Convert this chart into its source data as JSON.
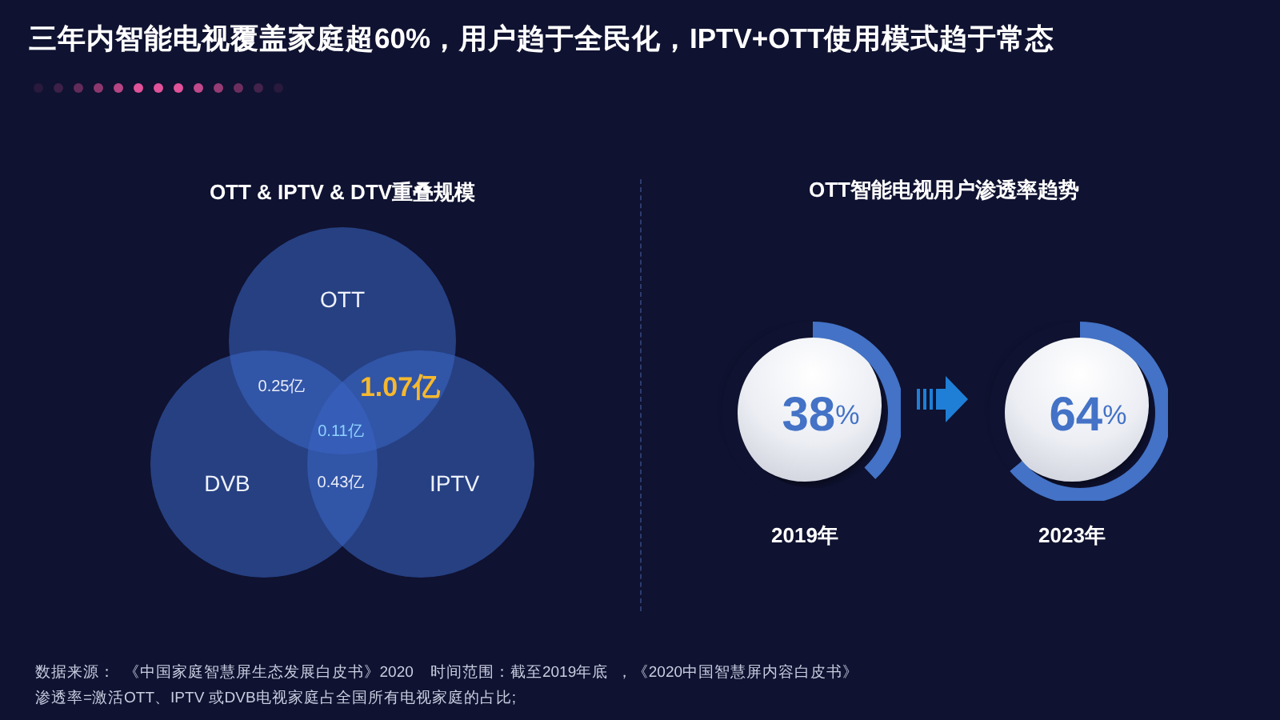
{
  "chart_data": [
    {
      "type": "other",
      "title": "三年内智能电视覆盖家庭超60%，用户趋于全民化，IPTV+OTT使用模式趋于常态",
      "annotations": [
        "数据来源：  《中国家庭智慧屏生态发展白皮书》2020    时间范围：截至2019年底  ，《2020中国智慧屏内容白皮书》",
        "渗透率=激活OTT、IPTV 或DVB电视家庭占全国所有电视家庭的占比;"
      ]
    },
    {
      "type": "other",
      "title": "OTT & IPTV & DTV重叠规模",
      "categories": [
        "OTT",
        "DVB",
        "IPTV"
      ],
      "color": "#3b66c6",
      "annotations": [
        "0.25亿",
        "1.07亿",
        "0.11亿",
        "0.43亿"
      ]
    },
    {
      "type": "donut",
      "title": "OTT智能电视用户渗透率趋势",
      "xlabel": "2019年",
      "categories": [
        null,
        null
      ],
      "values": [
        38,
        62
      ],
      "colors": [
        "#4372c6",
        "#0f1230"
      ],
      "value_labels": [
        "38%",
        null
      ]
    },
    {
      "type": "donut",
      "xlabel": "2023年",
      "categories": [
        null,
        null
      ],
      "values": [
        64,
        36
      ],
      "colors": [
        "#4372c6",
        "#0f1230"
      ],
      "value_labels": [
        "64%",
        null
      ]
    }
  ]
}
